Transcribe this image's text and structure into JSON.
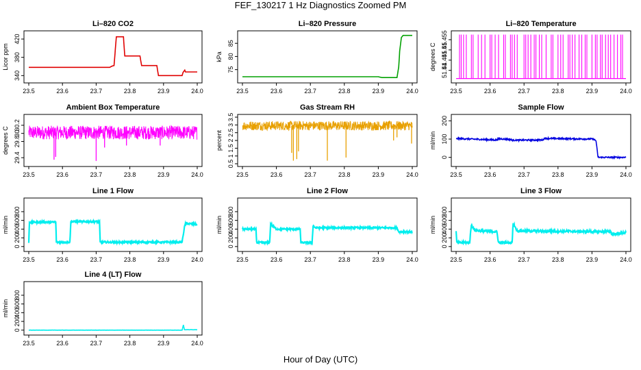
{
  "figure": {
    "title": "FEF_130217  1 Hz Diagnostics Zoomed PM",
    "xlabel": "Hour of Day (UTC)"
  },
  "chart_data": [
    {
      "type": "line",
      "title": "Li–820 CO2",
      "ylabel": "Licor ppm",
      "color": "#e00000",
      "xlim": [
        23.5,
        24.0
      ],
      "ylim": [
        330,
        432
      ],
      "yticks": [
        340,
        380,
        420
      ],
      "noise": 0,
      "x": [
        23.5,
        23.74,
        23.745,
        23.748,
        23.753,
        23.76,
        23.781,
        23.785,
        23.83,
        23.835,
        23.88,
        23.885,
        23.955,
        23.958,
        23.963,
        23.965,
        24.0
      ],
      "y": [
        358,
        358,
        360,
        361,
        362,
        425,
        425,
        383,
        383,
        362,
        362,
        340,
        340,
        347,
        352,
        348,
        348
      ]
    },
    {
      "type": "line",
      "title": "Li–820 Pressure",
      "ylabel": "kPa",
      "color": "#00a000",
      "xlim": [
        23.5,
        24.0
      ],
      "ylim": [
        71,
        88.7
      ],
      "yticks": [
        75,
        80,
        85
      ],
      "noise": 0,
      "x": [
        23.5,
        23.9,
        23.91,
        23.955,
        23.96,
        23.963,
        23.968,
        23.973,
        24.0
      ],
      "y": [
        72.3,
        72.3,
        72.0,
        72.0,
        76,
        82,
        87.2,
        88,
        88
      ]
    },
    {
      "type": "spikes",
      "title": "Li–820 Temperature",
      "ylabel": "degrees C",
      "color": "#ff00ff",
      "xlim": [
        23.5,
        24.0
      ],
      "ylim": [
        51.4352,
        51.458
      ],
      "yticks": [
        51.44,
        51.445,
        51.45,
        51.455
      ],
      "low": 51.436,
      "high": 51.4575,
      "x": [
        23.51,
        23.515,
        23.522,
        23.53,
        23.545,
        23.55,
        23.565,
        23.575,
        23.585,
        23.6,
        23.605,
        23.615,
        23.625,
        23.64,
        23.645,
        23.66,
        23.665,
        23.672,
        23.68,
        23.7,
        23.705,
        23.712,
        23.72,
        23.73,
        23.735,
        23.745,
        23.752,
        23.765,
        23.78,
        23.785,
        23.8,
        23.808,
        23.815,
        23.83,
        23.835,
        23.842,
        23.85,
        23.862,
        23.87,
        23.88,
        23.885,
        23.9,
        23.91,
        23.915,
        23.925,
        23.93,
        23.94,
        23.948,
        23.955,
        23.965,
        23.975,
        23.985,
        23.99
      ]
    },
    {
      "type": "noise",
      "title": "Ambient Box Temperature",
      "ylabel": "degrees C",
      "color": "#ff00ff",
      "xlim": [
        23.5,
        24.0
      ],
      "ylim": [
        29.25,
        30.4
      ],
      "yticks": [
        29.4,
        29.8,
        30.0,
        30.2
      ],
      "base": 30.02,
      "amp": 0.17,
      "dips": [
        [
          23.575,
          29.35
        ],
        [
          23.58,
          29.42
        ],
        [
          23.7,
          29.32
        ],
        [
          23.725,
          29.65
        ],
        [
          23.79,
          29.7
        ],
        [
          23.89,
          29.7
        ]
      ]
    },
    {
      "type": "noise",
      "title": "Gas Stream RH",
      "ylabel": "percent",
      "color": "#e8a000",
      "xlim": [
        23.5,
        24.0
      ],
      "ylim": [
        0.5,
        3.5
      ],
      "yticks": [
        0.5,
        1.0,
        1.5,
        2.0,
        2.5,
        3.0,
        3.5
      ],
      "base": 2.95,
      "amp": 0.3,
      "dips": [
        [
          23.645,
          1.2
        ],
        [
          23.65,
          0.7
        ],
        [
          23.66,
          0.8
        ],
        [
          23.665,
          1.3
        ],
        [
          23.75,
          0.7
        ],
        [
          23.805,
          0.9
        ],
        [
          23.945,
          2.0
        ],
        [
          23.955,
          2.2
        ],
        [
          23.998,
          1.8
        ]
      ]
    },
    {
      "type": "line",
      "title": "Sample Flow",
      "ylabel": "ml/min",
      "color": "#0000e0",
      "xlim": [
        23.5,
        24.0
      ],
      "ylim": [
        -35,
        220
      ],
      "yticks": [
        0,
        100,
        200
      ],
      "noise": 4,
      "x": [
        23.5,
        23.505,
        23.62,
        23.625,
        23.66,
        23.665,
        23.755,
        23.76,
        23.905,
        23.912,
        23.918,
        24.0
      ],
      "y": [
        100,
        103,
        95,
        102,
        98,
        94,
        95,
        104,
        100,
        90,
        0,
        0
      ]
    },
    {
      "type": "line",
      "title": "Line 1 Flow",
      "ylabel": "ml/min",
      "color": "#00eeee",
      "xlim": [
        23.5,
        24.0
      ],
      "ylim": [
        -50,
        1050
      ],
      "yticks": [
        0,
        200,
        400,
        600,
        800
      ],
      "noise": 20,
      "x": [
        23.5,
        23.502,
        23.505,
        23.58,
        23.582,
        23.622,
        23.625,
        23.71,
        23.712,
        23.955,
        23.962,
        23.965,
        24.0
      ],
      "y": [
        100,
        560,
        560,
        560,
        100,
        100,
        570,
        570,
        100,
        100,
        440,
        530,
        510
      ]
    },
    {
      "type": "line",
      "title": "Line 2 Flow",
      "ylabel": "ml/min",
      "color": "#00eeee",
      "xlim": [
        23.5,
        24.0
      ],
      "ylim": [
        -50,
        1050
      ],
      "yticks": [
        0,
        200,
        400,
        600,
        800
      ],
      "noise": 20,
      "x": [
        23.5,
        23.502,
        23.54,
        23.542,
        23.58,
        23.583,
        23.6,
        23.67,
        23.672,
        23.705,
        23.708,
        23.715,
        23.955,
        23.96,
        24.0
      ],
      "y": [
        400,
        400,
        400,
        90,
        90,
        520,
        400,
        400,
        90,
        90,
        480,
        430,
        430,
        340,
        340
      ]
    },
    {
      "type": "line",
      "title": "Line 3 Flow",
      "ylabel": "ml/min",
      "color": "#00eeee",
      "xlim": [
        23.5,
        24.0
      ],
      "ylim": [
        -50,
        1050
      ],
      "yticks": [
        0,
        200,
        400,
        600,
        800
      ],
      "noise": 25,
      "x": [
        23.5,
        23.502,
        23.51,
        23.54,
        23.545,
        23.555,
        23.62,
        23.625,
        23.665,
        23.668,
        23.68,
        23.955,
        23.96,
        24.0
      ],
      "y": [
        350,
        90,
        90,
        90,
        500,
        370,
        340,
        90,
        90,
        540,
        360,
        340,
        280,
        320
      ]
    },
    {
      "type": "line",
      "title": "Line 4 (LT) Flow",
      "ylabel": "ml/min",
      "color": "#00eeee",
      "xlim": [
        23.5,
        24.0
      ],
      "ylim": [
        -50,
        1050
      ],
      "yticks": [
        0,
        200,
        400,
        600,
        800
      ],
      "noise": 2,
      "x": [
        23.5,
        23.955,
        23.957,
        23.959,
        23.962,
        24.0
      ],
      "y": [
        0,
        0,
        60,
        120,
        10,
        10
      ]
    }
  ]
}
